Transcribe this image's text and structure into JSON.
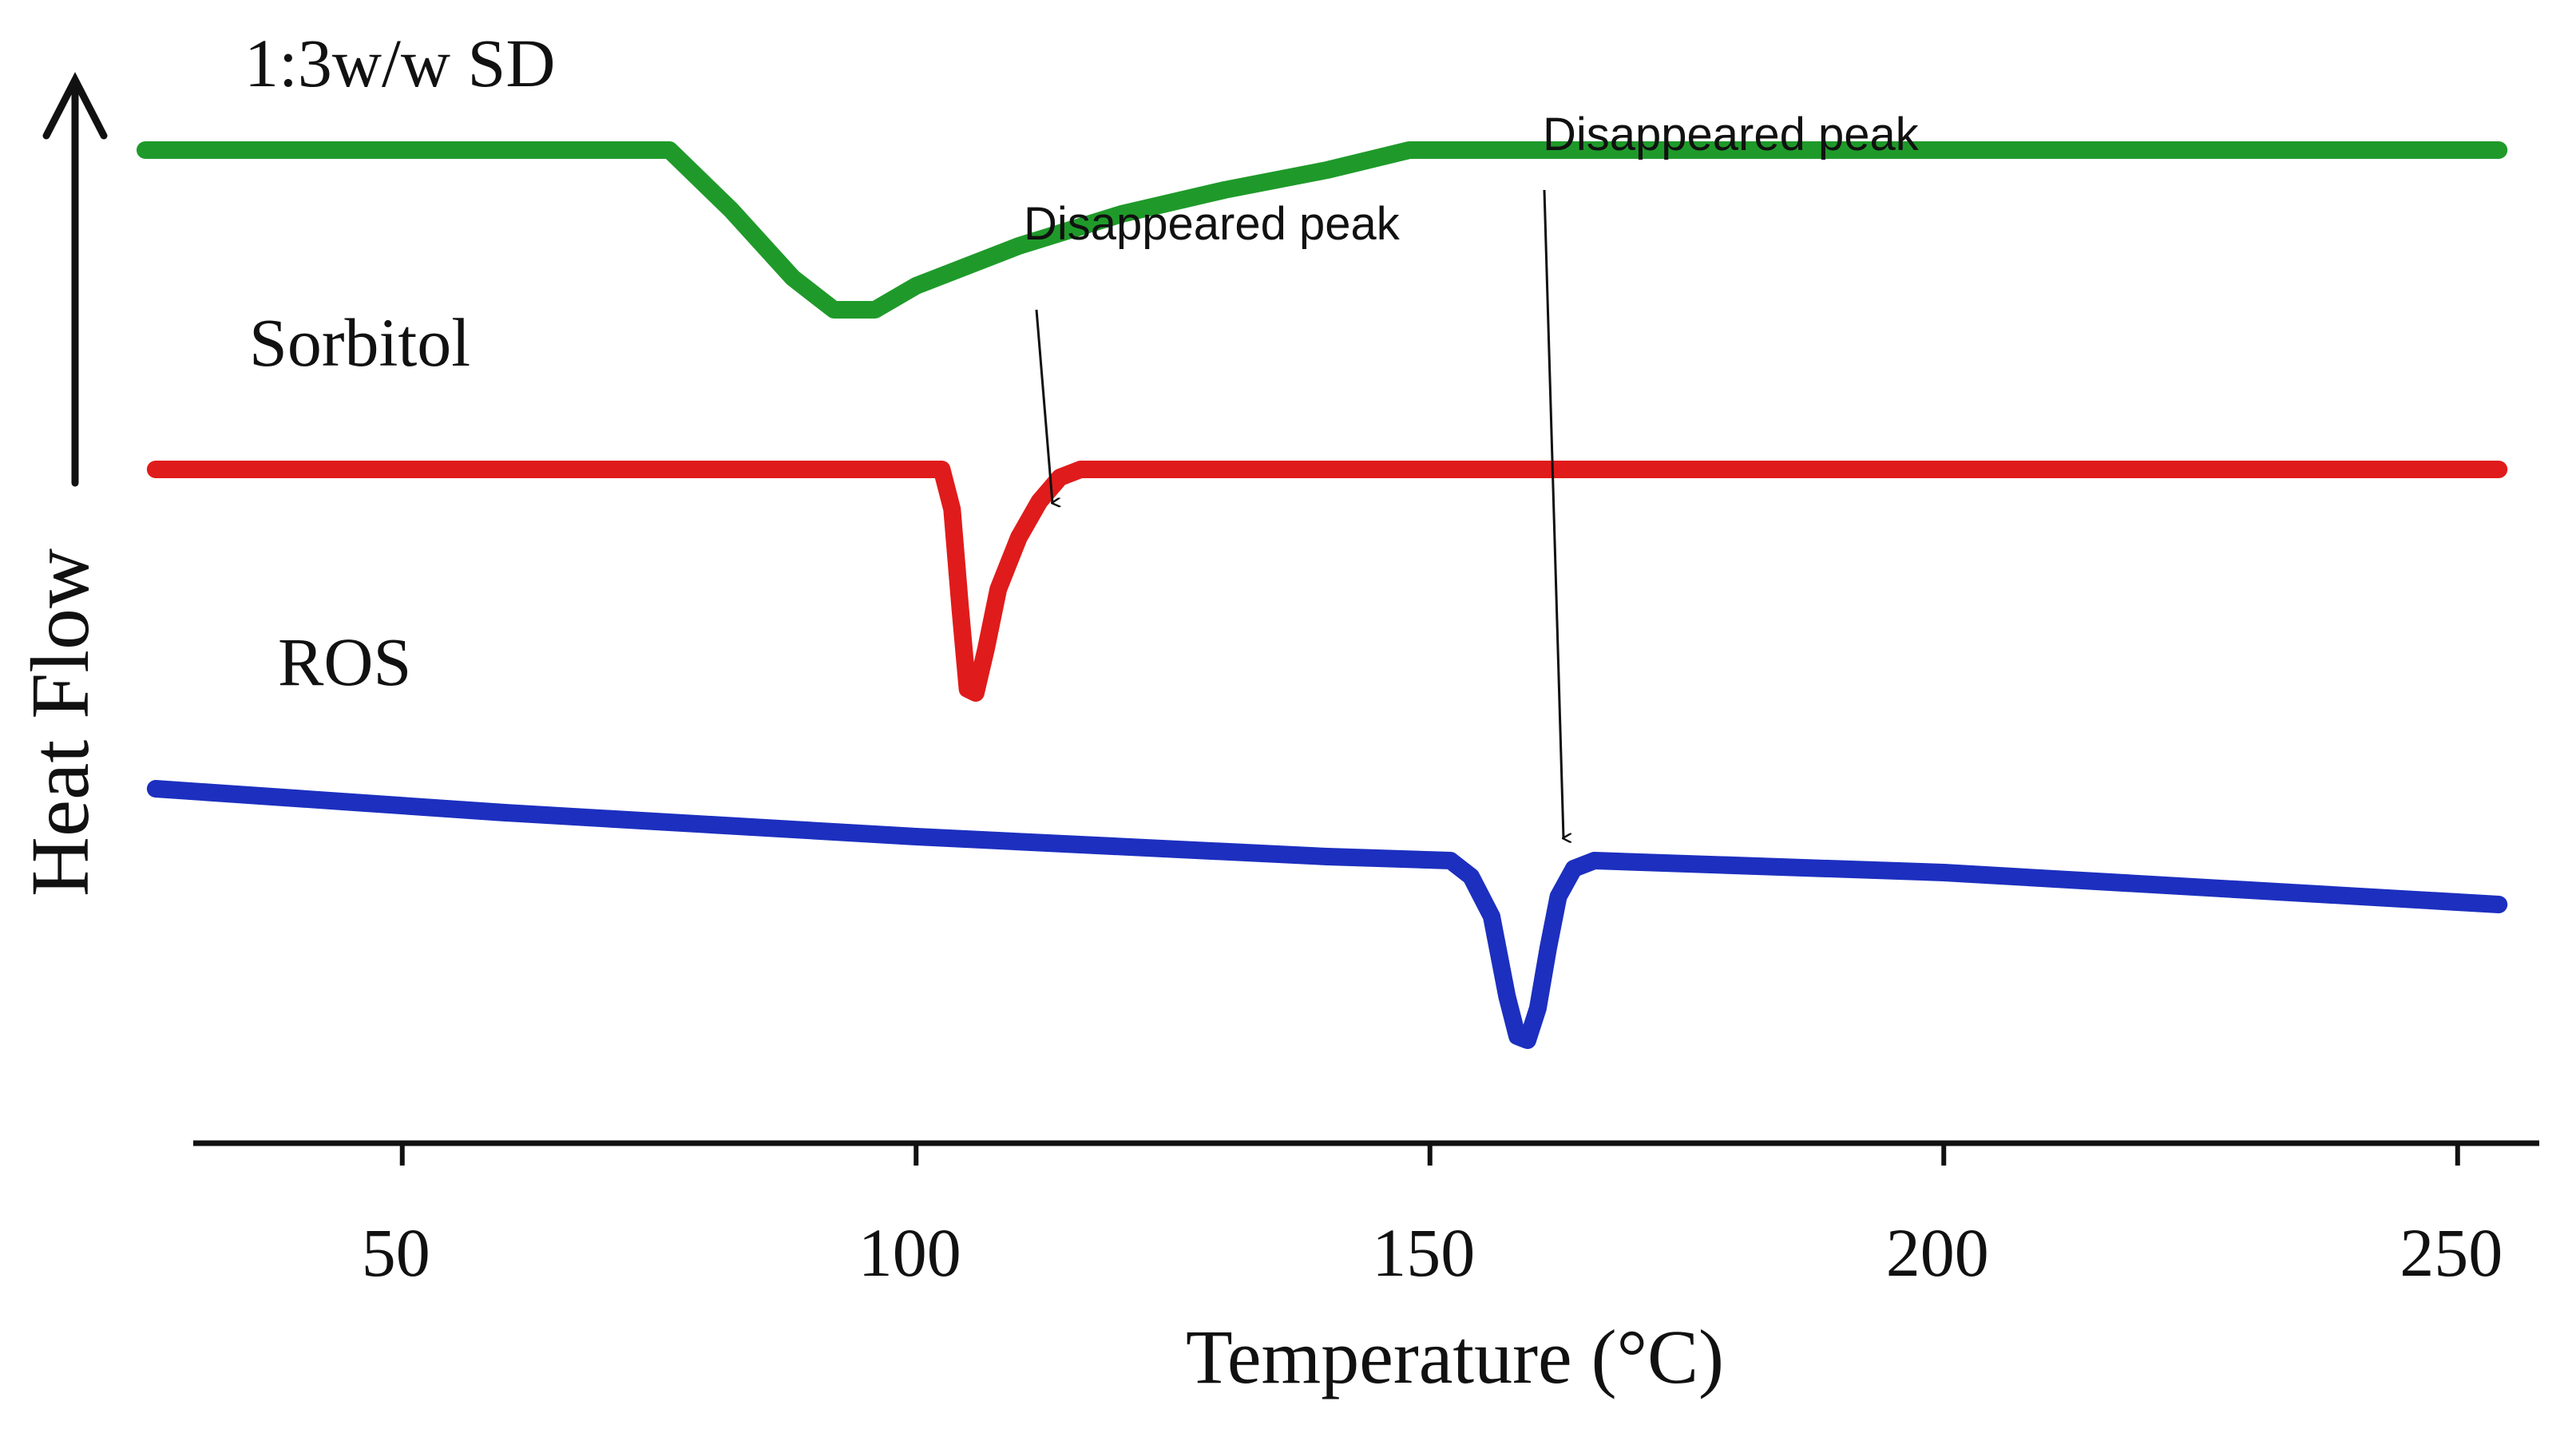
{
  "chart_data": {
    "type": "line",
    "title": "",
    "xlabel": "Temperature (°C)",
    "ylabel": "Heat Flow",
    "xlim": [
      25,
      254
    ],
    "xticks": [
      50,
      100,
      150,
      200,
      250
    ],
    "grid": false,
    "y_units": "arbitrary (stacked, offset traces)",
    "series": [
      {
        "name": "1:3w/w SD",
        "color": "#1f9a2a",
        "offset": 1.6,
        "points": [
          [
            25,
            0
          ],
          [
            76,
            0
          ],
          [
            82,
            -0.15
          ],
          [
            88,
            -0.32
          ],
          [
            92,
            -0.4
          ],
          [
            96,
            -0.4
          ],
          [
            100,
            -0.34
          ],
          [
            110,
            -0.24
          ],
          [
            120,
            -0.16
          ],
          [
            130,
            -0.1
          ],
          [
            140,
            -0.05
          ],
          [
            148,
            0
          ],
          [
            254,
            0
          ]
        ]
      },
      {
        "name": "Sorbitol",
        "color": "#e01b1b",
        "offset": 0.8,
        "points": [
          [
            26,
            0
          ],
          [
            102.5,
            0
          ],
          [
            103.5,
            -0.1
          ],
          [
            104.3,
            -0.35
          ],
          [
            105,
            -0.55
          ],
          [
            105.8,
            -0.56
          ],
          [
            106.8,
            -0.45
          ],
          [
            108,
            -0.3
          ],
          [
            110,
            -0.17
          ],
          [
            112,
            -0.08
          ],
          [
            114,
            -0.02
          ],
          [
            116,
            0
          ],
          [
            254,
            0
          ]
        ]
      },
      {
        "name": "ROS",
        "color": "#1c2fbf",
        "offset": 0,
        "points": [
          [
            26,
            0
          ],
          [
            60,
            -0.06
          ],
          [
            100,
            -0.12
          ],
          [
            140,
            -0.17
          ],
          [
            152,
            -0.18
          ],
          [
            154,
            -0.22
          ],
          [
            156,
            -0.32
          ],
          [
            157.5,
            -0.52
          ],
          [
            158.5,
            -0.62
          ],
          [
            159.5,
            -0.63
          ],
          [
            160.5,
            -0.55
          ],
          [
            161.5,
            -0.4
          ],
          [
            162.5,
            -0.27
          ],
          [
            164,
            -0.2
          ],
          [
            166,
            -0.18
          ],
          [
            200,
            -0.21
          ],
          [
            254,
            -0.29
          ]
        ]
      }
    ],
    "annotations": [
      {
        "text": "Disappeared peak",
        "points_to_series": "Sorbitol",
        "arrow_x": 108,
        "arrow_target_y": -0.0
      },
      {
        "text": "Disappeared peak",
        "points_to_series": "ROS",
        "arrow_x": 159,
        "arrow_target_y": -0.15
      }
    ]
  }
}
